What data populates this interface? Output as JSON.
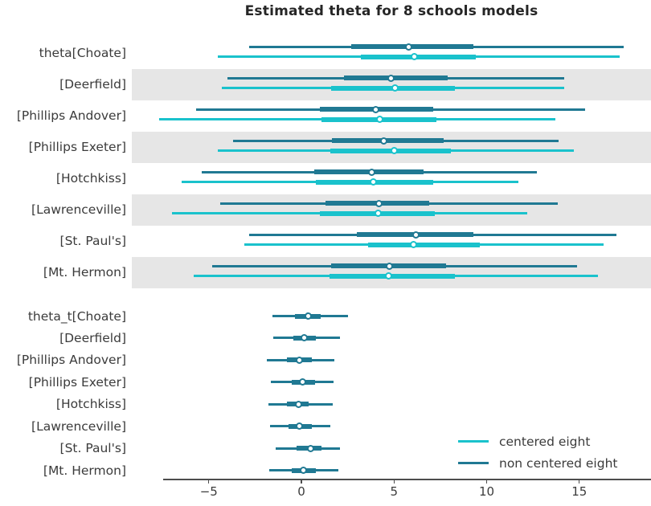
{
  "title": "Estimated theta for 8 schools models",
  "colors": {
    "centered": "#1ac2cc",
    "non_centered": "#207993",
    "band": "#e6e6e6",
    "axis": "#4d4d4d",
    "text": "#3b3b3b",
    "title_text": "#262626"
  },
  "legend_items": [
    {
      "label": "centered eight",
      "series": "centered"
    },
    {
      "label": "non centered eight",
      "series": "non_centered"
    }
  ],
  "chart_data": {
    "type": "forest_plot",
    "title": "Estimated theta for 8 schools models",
    "x_axis": {
      "range": [
        -9.15,
        18.87
      ],
      "ticks": [
        {
          "value": -5,
          "label": "−5"
        },
        {
          "value": 0,
          "label": "0"
        },
        {
          "value": 5,
          "label": "5"
        },
        {
          "value": 10,
          "label": "10"
        },
        {
          "value": 15,
          "label": "15"
        }
      ]
    },
    "grid": false,
    "legend_position": "lower right",
    "series_names": [
      "centered eight",
      "non centered eight"
    ],
    "theta_rows": [
      {
        "label": "theta[Choate]",
        "banded": false,
        "non_centered": {
          "ci": [
            -2.8,
            17.4
          ],
          "iqr": [
            2.7,
            9.3
          ],
          "median": 5.8
        },
        "centered": {
          "ci": [
            -4.5,
            17.2
          ],
          "iqr": [
            3.2,
            9.4
          ],
          "median": 6.1
        }
      },
      {
        "label": "[Deerfield]",
        "banded": true,
        "non_centered": {
          "ci": [
            -4.0,
            14.2
          ],
          "iqr": [
            2.3,
            7.9
          ],
          "median": 4.85
        },
        "centered": {
          "ci": [
            -4.3,
            14.2
          ],
          "iqr": [
            1.6,
            8.3
          ],
          "median": 5.05
        }
      },
      {
        "label": "[Phillips Andover]",
        "banded": false,
        "non_centered": {
          "ci": [
            -5.7,
            15.3
          ],
          "iqr": [
            1.0,
            7.1
          ],
          "median": 4.0
        },
        "centered": {
          "ci": [
            -7.7,
            13.7
          ],
          "iqr": [
            1.1,
            7.3
          ],
          "median": 4.25
        }
      },
      {
        "label": "[Phillips Exeter]",
        "banded": true,
        "non_centered": {
          "ci": [
            -3.7,
            13.9
          ],
          "iqr": [
            1.65,
            7.7
          ],
          "median": 4.45
        },
        "centered": {
          "ci": [
            -4.5,
            14.7
          ],
          "iqr": [
            1.55,
            8.05
          ],
          "median": 5.0
        }
      },
      {
        "label": "[Hotchkiss]",
        "banded": false,
        "non_centered": {
          "ci": [
            -5.4,
            12.7
          ],
          "iqr": [
            0.7,
            6.6
          ],
          "median": 3.8
        },
        "centered": {
          "ci": [
            -6.45,
            11.7
          ],
          "iqr": [
            0.8,
            7.1
          ],
          "median": 3.9
        }
      },
      {
        "label": "[Lawrenceville]",
        "banded": true,
        "non_centered": {
          "ci": [
            -4.4,
            13.85
          ],
          "iqr": [
            1.3,
            6.9
          ],
          "median": 4.2
        },
        "centered": {
          "ci": [
            -7.0,
            12.2
          ],
          "iqr": [
            1.0,
            7.2
          ],
          "median": 4.15
        }
      },
      {
        "label": "[St. Paul's]",
        "banded": false,
        "non_centered": {
          "ci": [
            -2.8,
            17.0
          ],
          "iqr": [
            3.0,
            9.3
          ],
          "median": 6.2
        },
        "centered": {
          "ci": [
            -3.1,
            16.3
          ],
          "iqr": [
            3.6,
            9.65
          ],
          "median": 6.05
        }
      },
      {
        "label": "[Mt. Hermon]",
        "banded": true,
        "non_centered": {
          "ci": [
            -4.8,
            14.9
          ],
          "iqr": [
            1.6,
            7.8
          ],
          "median": 4.75
        },
        "centered": {
          "ci": [
            -5.8,
            16.0
          ],
          "iqr": [
            1.5,
            8.3
          ],
          "median": 4.7
        }
      }
    ],
    "theta_t_rows": [
      {
        "label": "theta_t[Choate]",
        "non_centered": {
          "ci": [
            -1.55,
            2.5
          ],
          "iqr": [
            -0.35,
            1.05
          ],
          "median": 0.35
        }
      },
      {
        "label": "[Deerfield]",
        "non_centered": {
          "ci": [
            -1.5,
            2.1
          ],
          "iqr": [
            -0.45,
            0.8
          ],
          "median": 0.17
        }
      },
      {
        "label": "[Phillips Andover]",
        "non_centered": {
          "ci": [
            -1.85,
            1.8
          ],
          "iqr": [
            -0.8,
            0.55
          ],
          "median": -0.1
        }
      },
      {
        "label": "[Phillips Exeter]",
        "non_centered": {
          "ci": [
            -1.65,
            1.75
          ],
          "iqr": [
            -0.5,
            0.75
          ],
          "median": 0.05
        }
      },
      {
        "label": "[Hotchkiss]",
        "non_centered": {
          "ci": [
            -1.8,
            1.7
          ],
          "iqr": [
            -0.8,
            0.4
          ],
          "median": -0.17
        }
      },
      {
        "label": "[Lawrenceville]",
        "non_centered": {
          "ci": [
            -1.7,
            1.55
          ],
          "iqr": [
            -0.7,
            0.55
          ],
          "median": -0.1
        }
      },
      {
        "label": "[St. Paul's]",
        "non_centered": {
          "ci": [
            -1.4,
            2.1
          ],
          "iqr": [
            -0.25,
            1.1
          ],
          "median": 0.48
        }
      },
      {
        "label": "[Mt. Hermon]",
        "non_centered": {
          "ci": [
            -1.75,
            2.0
          ],
          "iqr": [
            -0.5,
            0.8
          ],
          "median": 0.13
        }
      }
    ]
  }
}
